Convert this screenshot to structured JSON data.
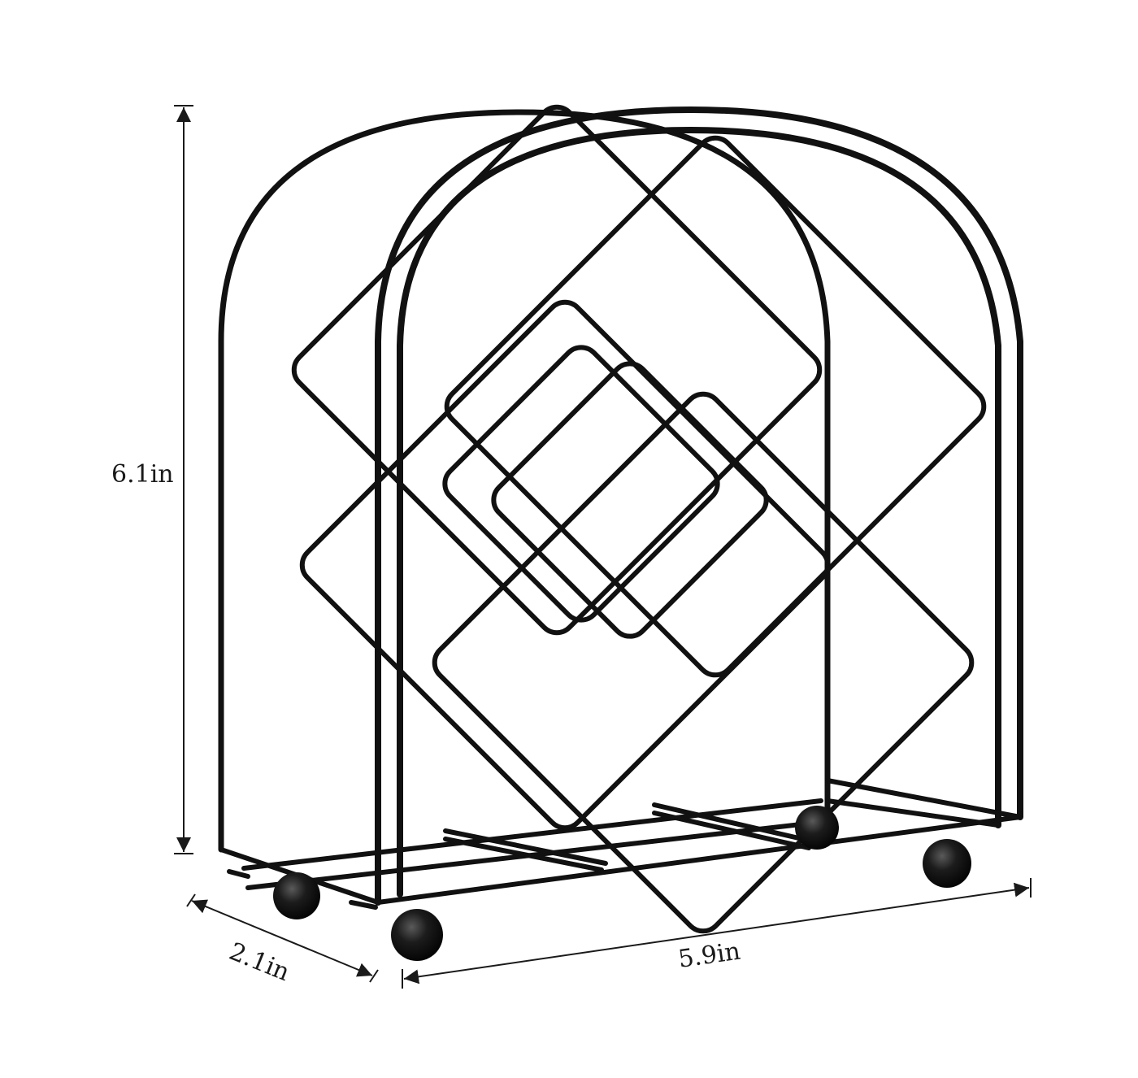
{
  "product": {
    "name_icon": "napkin-holder-icon",
    "wire_color": "#111111",
    "background_color": "#ffffff"
  },
  "dimensions": {
    "height_label": "6.1in",
    "depth_label": "2.1in",
    "width_label": "5.9in",
    "line_color": "#1a1a1a"
  }
}
